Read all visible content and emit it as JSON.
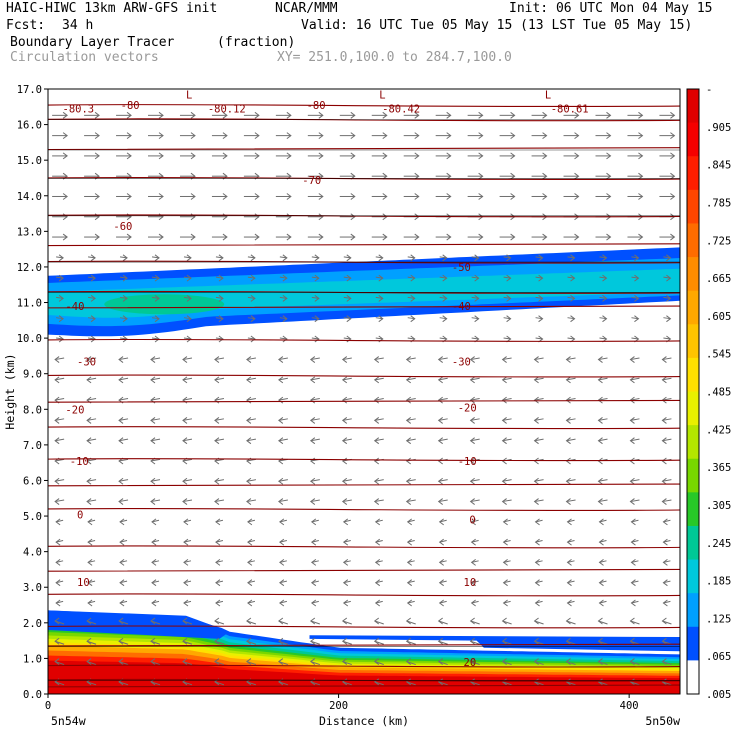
{
  "header": {
    "model": "HAIC-HIWC 13km ARW-GFS init",
    "org": "NCAR/MMM",
    "init": "Init: 06 UTC Mon 04 May 15",
    "fcst_label": "Fcst:",
    "fcst_value": "34 h",
    "valid": "Valid: 16 UTC Tue 05 May 15 (13 LST Tue 05 May 15)",
    "field": "Boundary Layer Tracer",
    "units": "(fraction)",
    "vectors": "Circulation vectors",
    "xy": "XY= 251.0,100.0 to 284.7,100.0"
  },
  "colors": {
    "contour": "#8b0000",
    "vector": "#6e6e6e",
    "hline": "#000000"
  },
  "chart_data": {
    "type": "heatmap",
    "ylabel": "Height (km)",
    "xlabel": "Distance (km)",
    "x_range": [
      0,
      435
    ],
    "ylim": [
      0,
      17
    ],
    "y_ticks": [
      "0.0",
      "1.0",
      "2.0",
      "3.0",
      "4.0",
      "5.0",
      "6.0",
      "7.0",
      "8.0",
      "9.0",
      "10.0",
      "11.0",
      "12.0",
      "13.0",
      "14.0",
      "15.0",
      "16.0",
      "17.0"
    ],
    "x_ticks": [
      {
        "value": 0,
        "label": "0"
      },
      {
        "value": 200,
        "label": "200"
      },
      {
        "value": 400,
        "label": "400"
      }
    ],
    "x_end_labels": {
      "left": "5n54w",
      "right": "5n50w"
    },
    "colorbar": {
      "labels": [
        "-",
        ".905",
        ".845",
        ".785",
        ".725",
        ".665",
        ".605",
        ".545",
        ".485",
        ".425",
        ".365",
        ".305",
        ".245",
        ".185",
        ".125",
        ".065",
        ".005"
      ],
      "colors": [
        "#e00000",
        "#f50000",
        "#ff1e00",
        "#ff4600",
        "#ff6c00",
        "#ff8c00",
        "#ffa800",
        "#ffc400",
        "#ffe000",
        "#e8f000",
        "#b4e600",
        "#78d700",
        "#28c828",
        "#00c896",
        "#00c8dc",
        "#00a0ff",
        "#0050ff",
        "#ffffff"
      ]
    },
    "isentropes": [
      {
        "y": 0.2
      },
      {
        "y": 0.4
      },
      {
        "y": 0.8
      },
      {
        "y": 1.35
      },
      {
        "y": 1.9
      },
      {
        "y": 2.8
      },
      {
        "y": 3.45
      },
      {
        "y": 4.15
      },
      {
        "y": 5.2
      },
      {
        "y": 5.85
      },
      {
        "y": 6.6
      },
      {
        "y": 7.5
      },
      {
        "y": 8.2
      },
      {
        "y": 8.95
      },
      {
        "y": 9.95
      },
      {
        "y": 10.85
      },
      {
        "y": 11.3
      },
      {
        "y": 12.15
      },
      {
        "y": 12.6
      },
      {
        "y": 13.45
      },
      {
        "y": 14.5
      },
      {
        "y": 15.3
      },
      {
        "y": 16.15
      },
      {
        "y": 16.55
      }
    ],
    "contour_labels": [
      {
        "x": 10,
        "y": 16.45,
        "text": "-80.3"
      },
      {
        "x": 50,
        "y": 16.55,
        "text": "-80"
      },
      {
        "x": 110,
        "y": 16.45,
        "text": "-80.12"
      },
      {
        "x": 178,
        "y": 16.55,
        "text": "-80"
      },
      {
        "x": 230,
        "y": 16.45,
        "text": "-80.42"
      },
      {
        "x": 346,
        "y": 16.45,
        "text": "-80.61"
      },
      {
        "x": 95,
        "y": 16.85,
        "text": "L"
      },
      {
        "x": 228,
        "y": 16.85,
        "text": "L"
      },
      {
        "x": 342,
        "y": 16.85,
        "text": "L"
      },
      {
        "x": 175,
        "y": 14.45,
        "text": "-70"
      },
      {
        "x": 45,
        "y": 13.15,
        "text": "-60"
      },
      {
        "x": 278,
        "y": 12.0,
        "text": "-50"
      },
      {
        "x": 12,
        "y": 10.9,
        "text": "-40"
      },
      {
        "x": 278,
        "y": 10.9,
        "text": "-40"
      },
      {
        "x": 20,
        "y": 9.35,
        "text": "-30"
      },
      {
        "x": 278,
        "y": 9.35,
        "text": "-30"
      },
      {
        "x": 12,
        "y": 8.0,
        "text": "-20"
      },
      {
        "x": 282,
        "y": 8.05,
        "text": "-20"
      },
      {
        "x": 15,
        "y": 6.55,
        "text": "-10"
      },
      {
        "x": 282,
        "y": 6.55,
        "text": "-10"
      },
      {
        "x": 20,
        "y": 5.05,
        "text": "0"
      },
      {
        "x": 290,
        "y": 4.9,
        "text": "0"
      },
      {
        "x": 20,
        "y": 3.15,
        "text": "10"
      },
      {
        "x": 286,
        "y": 3.15,
        "text": "10"
      },
      {
        "x": 286,
        "y": 0.9,
        "text": "20"
      }
    ]
  }
}
